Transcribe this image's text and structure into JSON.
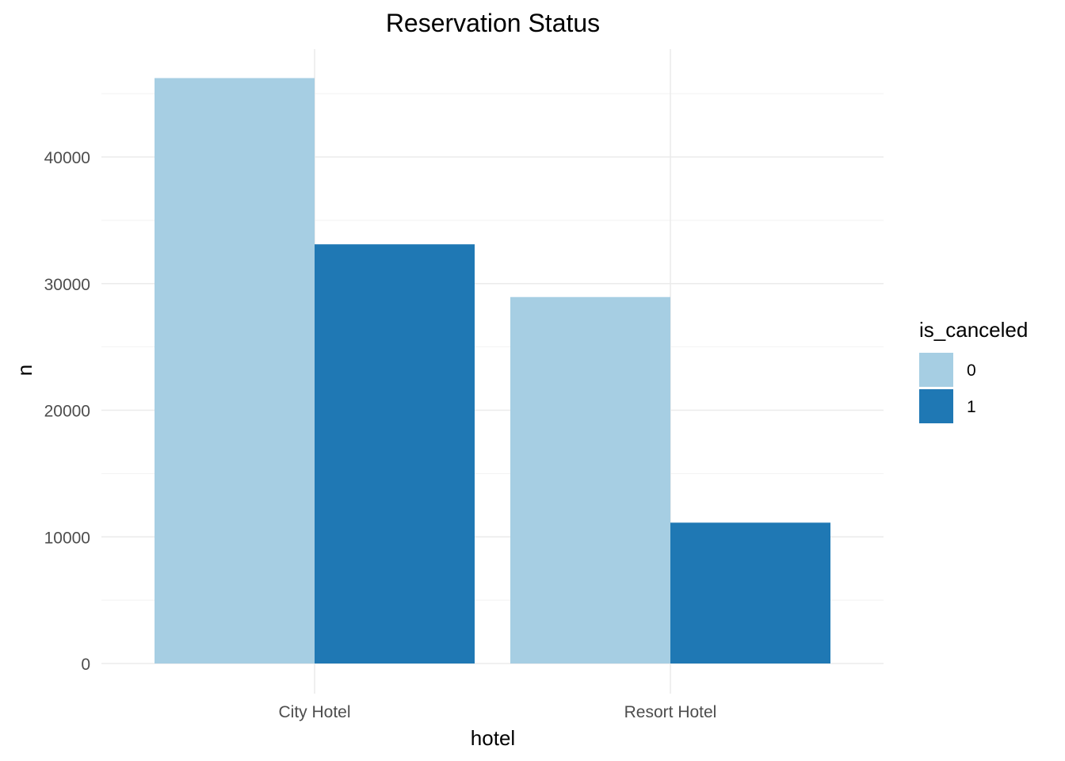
{
  "chart_data": {
    "type": "bar",
    "title": "Reservation Status",
    "xlabel": "hotel",
    "ylabel": "n",
    "categories": [
      "City Hotel",
      "Resort Hotel"
    ],
    "series": [
      {
        "name": "0",
        "values": [
          46228,
          28938
        ],
        "color": "#a6cee3"
      },
      {
        "name": "1",
        "values": [
          33102,
          11122
        ],
        "color": "#1f78b4"
      }
    ],
    "ylim": [
      0,
      48000
    ],
    "yticks": [
      0,
      10000,
      20000,
      30000,
      40000
    ],
    "ytick_labels": [
      "0",
      "10000",
      "20000",
      "30000",
      "40000"
    ],
    "grid": true,
    "legend": {
      "title": "is_canceled",
      "position": "right"
    }
  }
}
